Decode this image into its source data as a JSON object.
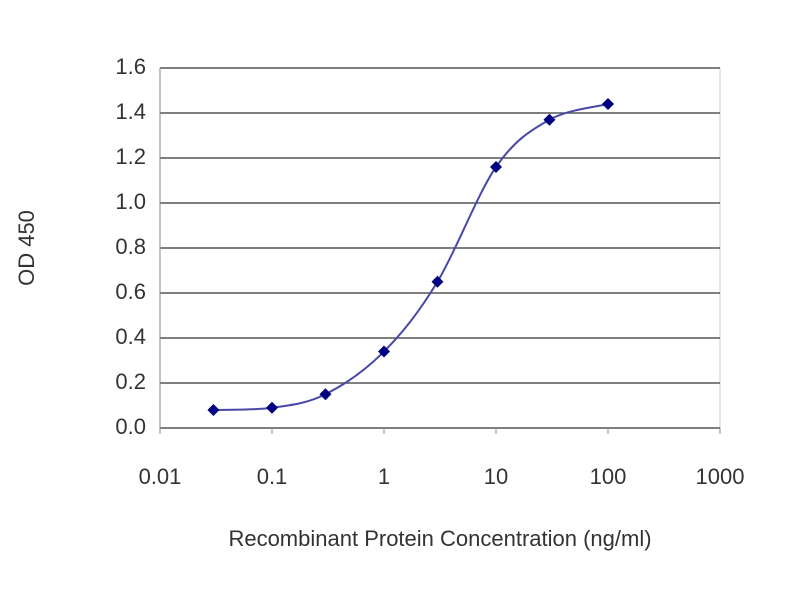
{
  "chart_data": {
    "type": "line",
    "x_label": "Recombinant Protein Concentration (ng/ml)",
    "y_label": "OD 450",
    "x": [
      0.03,
      0.1,
      0.3,
      1,
      3,
      10,
      30,
      100
    ],
    "series": [
      {
        "name": "OD 450",
        "color": "#000080",
        "line_color": "#4848a8",
        "values": [
          0.08,
          0.09,
          0.15,
          0.34,
          0.65,
          1.16,
          1.37,
          1.44
        ]
      }
    ],
    "xscale": "log",
    "xlim": [
      0.01,
      1000
    ],
    "xticks": [
      0.01,
      0.1,
      1,
      10,
      100,
      1000
    ],
    "ylim": [
      0,
      1.6
    ],
    "yticks": [
      {
        "value": 0,
        "label": "0.0"
      },
      0.2,
      0.4,
      0.6,
      0.8,
      {
        "value": 1,
        "label": "1.0"
      },
      1.2,
      1.4,
      1.6
    ],
    "grid": true
  }
}
